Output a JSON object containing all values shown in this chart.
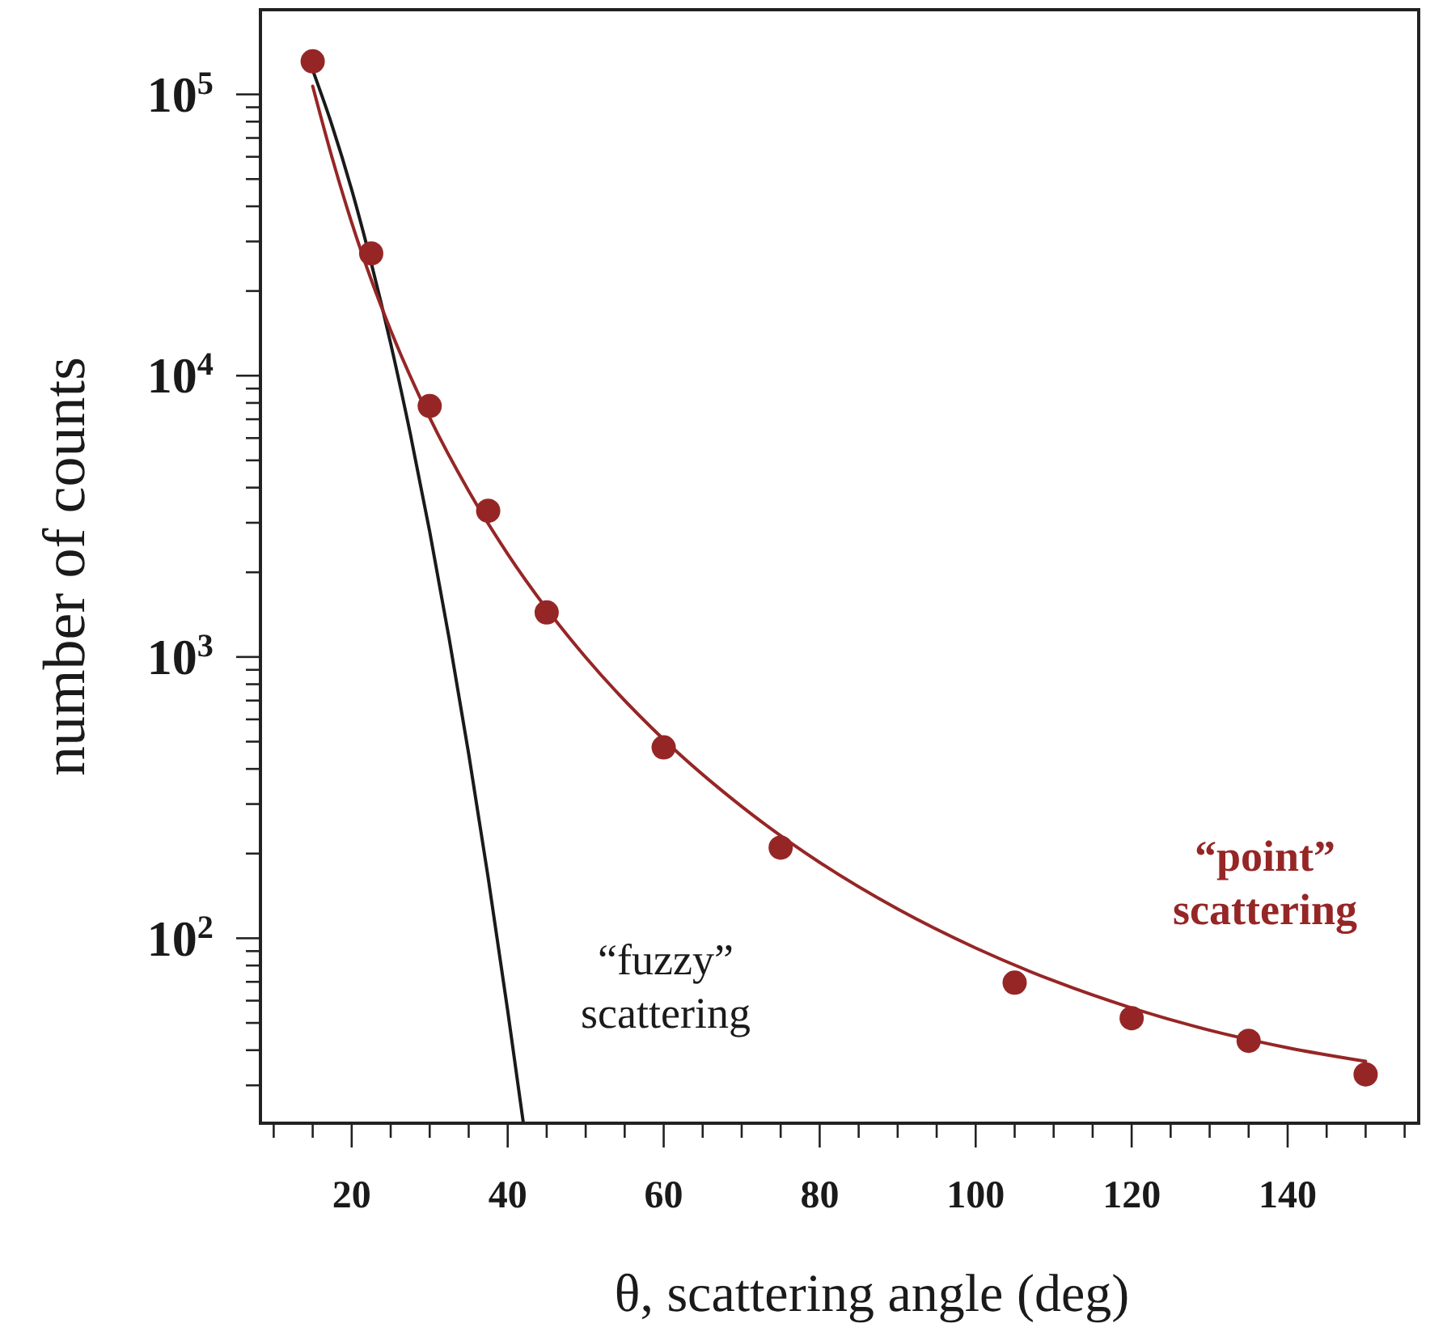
{
  "chart_data": {
    "type": "line",
    "xlabel": "θ, scattering angle (deg)",
    "ylabel": "number of counts",
    "log": "y",
    "grid": false,
    "xlim": [
      8.3,
      156.8
    ],
    "ylim": [
      22,
      200000
    ],
    "xticks": [
      {
        "value": 10,
        "label": null
      },
      {
        "value": 15,
        "label": null
      },
      20,
      {
        "value": 25,
        "label": null
      },
      {
        "value": 30,
        "label": null
      },
      {
        "value": 35,
        "label": null
      },
      40,
      {
        "value": 45,
        "label": null
      },
      {
        "value": 50,
        "label": null
      },
      {
        "value": 55,
        "label": null
      },
      60,
      {
        "value": 65,
        "label": null
      },
      {
        "value": 70,
        "label": null
      },
      {
        "value": 75,
        "label": null
      },
      80,
      {
        "value": 85,
        "label": null
      },
      {
        "value": 90,
        "label": null
      },
      {
        "value": 95,
        "label": null
      },
      100,
      {
        "value": 105,
        "label": null
      },
      {
        "value": 110,
        "label": null
      },
      {
        "value": 115,
        "label": null
      },
      120,
      {
        "value": 125,
        "label": null
      },
      {
        "value": 130,
        "label": null
      },
      {
        "value": 135,
        "label": null
      },
      140,
      {
        "value": 145,
        "label": null
      },
      {
        "value": 150,
        "label": null
      },
      {
        "value": 155,
        "label": null
      }
    ],
    "yticks": [
      {
        "value": 30,
        "label": null
      },
      {
        "value": 40,
        "label": null
      },
      {
        "value": 50,
        "label": null
      },
      {
        "value": 60,
        "label": null
      },
      {
        "value": 70,
        "label": null
      },
      {
        "value": 80,
        "label": null
      },
      {
        "value": 90,
        "label": null
      },
      {
        "value": 100,
        "label": "10$^{2}$"
      },
      {
        "value": 200,
        "label": null
      },
      {
        "value": 300,
        "label": null
      },
      {
        "value": 400,
        "label": null
      },
      {
        "value": 500,
        "label": null
      },
      {
        "value": 600,
        "label": null
      },
      {
        "value": 700,
        "label": null
      },
      {
        "value": 800,
        "label": null
      },
      {
        "value": 900,
        "label": null
      },
      {
        "value": 1000,
        "label": "10$^{3}$"
      },
      {
        "value": 2000,
        "label": null
      },
      {
        "value": 3000,
        "label": null
      },
      {
        "value": 4000,
        "label": null
      },
      {
        "value": 5000,
        "label": null
      },
      {
        "value": 6000,
        "label": null
      },
      {
        "value": 7000,
        "label": null
      },
      {
        "value": 8000,
        "label": null
      },
      {
        "value": 9000,
        "label": null
      },
      {
        "value": 10000,
        "label": "10$^{4}$"
      },
      {
        "value": 20000,
        "label": null
      },
      {
        "value": 30000,
        "label": null
      },
      {
        "value": 40000,
        "label": null
      },
      {
        "value": 50000,
        "label": null
      },
      {
        "value": 60000,
        "label": null
      },
      {
        "value": 70000,
        "label": null
      },
      {
        "value": 80000,
        "label": null
      },
      {
        "value": 90000,
        "label": null
      },
      {
        "value": 100000,
        "label": "10$^{5}$"
      }
    ],
    "series": [
      {
        "name": "“fuzzy” scattering",
        "color": "#1a1a1a",
        "marker": "none",
        "line_style": "solid",
        "x": [
          15,
          17.5,
          20,
          22.5,
          25,
          27.5,
          30,
          32.5,
          35,
          37.5,
          40,
          42
        ],
        "values": [
          122000,
          77300,
          45800,
          25200,
          13000,
          6240,
          2790,
          1160,
          452,
          164,
          55.3,
          22.1
        ]
      },
      {
        "name": "“point” scattering",
        "color": "#962626",
        "marker": "none",
        "line_style": "solid",
        "x": [
          15,
          17.5,
          20,
          22.5,
          25,
          30,
          35,
          40,
          45,
          50,
          60,
          70,
          80,
          90,
          100,
          110,
          120,
          130,
          140,
          150
        ],
        "values": [
          107000,
          59400,
          35000,
          21950,
          14490,
          7086,
          3890,
          2324,
          1483,
          997,
          509,
          294,
          186,
          127,
          92.3,
          70.6,
          56.5,
          47.1,
          40.8,
          36.5
        ]
      },
      {
        "type": "scatter",
        "color": "#962626",
        "marker": "circle",
        "x": [
          15,
          22.5,
          30,
          37.5,
          45,
          60,
          75,
          105,
          120,
          135,
          150
        ],
        "values": [
          131000,
          27200,
          7800,
          3310,
          1440,
          477,
          210,
          69.5,
          52,
          43.2,
          32.8
        ]
      }
    ]
  }
}
